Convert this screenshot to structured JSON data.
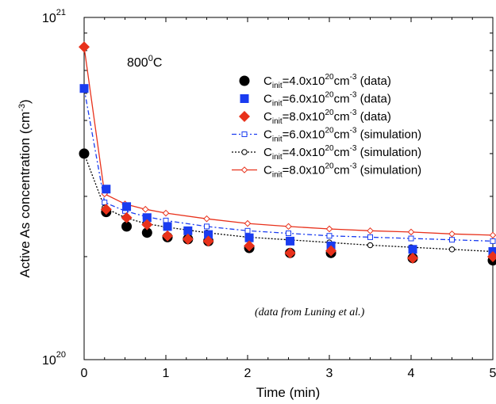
{
  "chart_data": {
    "type": "scatter",
    "ylabel": "Active As concentration (cm",
    "ylabel_sup": "-3",
    "ylabel_end": ")",
    "xlabel": "Time (min)",
    "xlim": [
      0,
      5
    ],
    "ylim": [
      1e+20,
      1e+21
    ],
    "yscale": "log",
    "grid": false,
    "legend_position": "top-right",
    "x_ticks": [
      "0",
      "1",
      "2",
      "3",
      "4",
      "5"
    ],
    "y_tick_labels": [
      {
        "value": 1e+21,
        "base": "10",
        "exp": "21"
      },
      {
        "value": 1e+20,
        "base": "10",
        "exp": "20"
      }
    ],
    "annotation_temperature": {
      "main": "800",
      "sup": "0",
      "tail": "C"
    },
    "annotation_source": "(data from Luning et al.)",
    "series": [
      {
        "legend": {
          "pre": "C",
          "sub": "init",
          "mid": "=4.0x10",
          "exp1": "20",
          "unit": "cm",
          "exp2": "-3",
          "post": " (data)"
        },
        "style": "data",
        "marker": "circle",
        "color": "#000000",
        "x": [
          0,
          0.27,
          0.52,
          0.77,
          1.02,
          1.27,
          1.52,
          2.02,
          2.52,
          3.02,
          4.02,
          5.0
        ],
        "y": [
          4e+20,
          2.7e+20,
          2.45e+20,
          2.35e+20,
          2.28e+20,
          2.25e+20,
          2.22e+20,
          2.12e+20,
          2.05e+20,
          2.05e+20,
          1.98e+20,
          1.95e+20
        ]
      },
      {
        "legend": {
          "pre": "C",
          "sub": "init",
          "mid": "=6.0x10",
          "exp1": "20",
          "unit": "cm",
          "exp2": "-3",
          "post": " (data)"
        },
        "style": "data",
        "marker": "square",
        "color": "#1a3cf0",
        "x": [
          0,
          0.27,
          0.52,
          0.77,
          1.02,
          1.27,
          1.52,
          2.02,
          2.52,
          3.02,
          4.02,
          5.0
        ],
        "y": [
          6.2e+20,
          3.15e+20,
          2.8e+20,
          2.6e+20,
          2.45e+20,
          2.38e+20,
          2.32e+20,
          2.27e+20,
          2.22e+20,
          2.15e+20,
          2.1e+20,
          2.07e+20
        ]
      },
      {
        "legend": {
          "pre": "C",
          "sub": "init",
          "mid": "=8.0x10",
          "exp1": "20",
          "unit": "cm",
          "exp2": "-3",
          "post": " (data)"
        },
        "style": "data",
        "marker": "diamond",
        "color": "#e8311b",
        "x": [
          0,
          0.27,
          0.52,
          0.77,
          1.02,
          1.27,
          1.52,
          2.02,
          2.52,
          3.02,
          4.02,
          5.0
        ],
        "y": [
          8.2e+20,
          2.75e+20,
          2.6e+20,
          2.48e+20,
          2.3e+20,
          2.25e+20,
          2.22e+20,
          2.15e+20,
          2.05e+20,
          2.08e+20,
          1.98e+20,
          2e+20
        ]
      },
      {
        "legend": {
          "pre": "C",
          "sub": "init",
          "mid": "=6.0x10",
          "exp1": "20",
          "unit": "cm",
          "exp2": "-3",
          "post": " (simulation)"
        },
        "style": "sim",
        "marker": "square-open",
        "color": "#1a3cf0",
        "dash": "6,3,2,3",
        "x": [
          0,
          0.25,
          0.5,
          0.75,
          1.0,
          1.5,
          2.0,
          2.5,
          3.0,
          3.5,
          4.0,
          4.5,
          5.0
        ],
        "y": [
          6.2e+20,
          2.88e+20,
          2.72e+20,
          2.62e+20,
          2.55e+20,
          2.45e+20,
          2.38e+20,
          2.34e+20,
          2.3e+20,
          2.28e+20,
          2.26e+20,
          2.24e+20,
          2.22e+20
        ]
      },
      {
        "legend": {
          "pre": "C",
          "sub": "init",
          "mid": "=4.0x10",
          "exp1": "20",
          "unit": "cm",
          "exp2": "-3",
          "post": " (simulation)"
        },
        "style": "sim",
        "marker": "circle-open",
        "color": "#000000",
        "dash": "2,2",
        "x": [
          0,
          0.25,
          0.5,
          0.75,
          1.0,
          1.5,
          2.0,
          2.5,
          3.0,
          3.5,
          4.0,
          4.5,
          5.0
        ],
        "y": [
          4e+20,
          2.78e+20,
          2.6e+20,
          2.5e+20,
          2.44e+20,
          2.35e+20,
          2.28e+20,
          2.24e+20,
          2.2e+20,
          2.16e+20,
          2.13e+20,
          2.1e+20,
          2.07e+20
        ]
      },
      {
        "legend": {
          "pre": "C",
          "sub": "init",
          "mid": "=8.0x10",
          "exp1": "20",
          "unit": "cm",
          "exp2": "-3",
          "post": " (simulation)"
        },
        "style": "sim",
        "marker": "diamond-open",
        "color": "#e8311b",
        "dash": "",
        "x": [
          0,
          0.25,
          0.5,
          0.75,
          1.0,
          1.5,
          2.0,
          2.5,
          3.0,
          3.5,
          4.0,
          4.5,
          5.0
        ],
        "y": [
          8.2e+20,
          3.05e+20,
          2.85e+20,
          2.75e+20,
          2.68e+20,
          2.58e+20,
          2.5e+20,
          2.45e+20,
          2.41e+20,
          2.38e+20,
          2.36e+20,
          2.33e+20,
          2.31e+20
        ]
      }
    ]
  }
}
